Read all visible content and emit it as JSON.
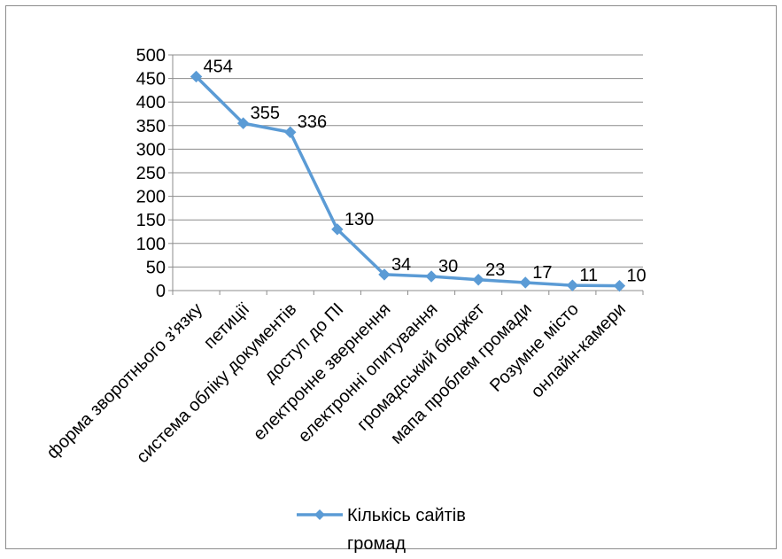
{
  "chart_data": {
    "type": "line",
    "title": "",
    "xlabel": "",
    "ylabel": "",
    "ylim": [
      0,
      500
    ],
    "yticks": [
      0,
      50,
      100,
      150,
      200,
      250,
      300,
      350,
      400,
      450,
      500
    ],
    "grid": true,
    "legend_position": "bottom",
    "line_color": "#5B9BD5",
    "categories": [
      "форма зворотнього з'язку",
      "петиції",
      "система обліку документів",
      "доступ до ПІ",
      "електронне звернення",
      "електронні опитування",
      "громадський бюджет",
      "мапа проблем громади",
      "Розумне місто",
      "онлайн-камери"
    ],
    "series": [
      {
        "name": "Кількісь сайтів громад",
        "values": [
          454,
          355,
          336,
          130,
          34,
          30,
          23,
          17,
          11,
          10
        ]
      }
    ]
  }
}
